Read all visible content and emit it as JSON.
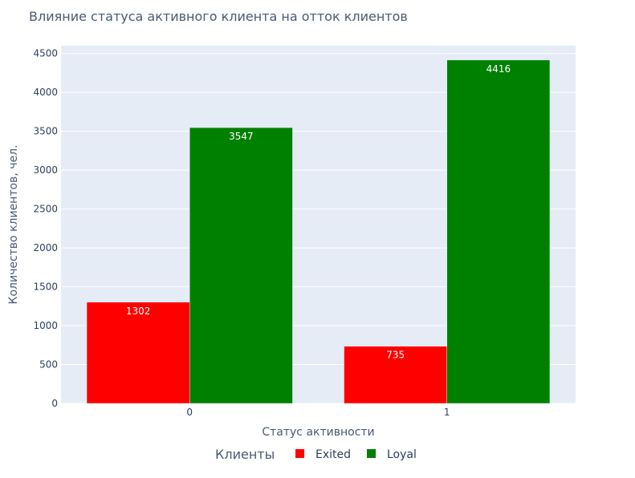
{
  "chart_data": {
    "type": "bar",
    "title": "Влияние статуса активного клиента на отток клиентов",
    "xlabel": "Статус активности",
    "ylabel": "Количество клиентов, чел.",
    "categories": [
      "0",
      "1"
    ],
    "series": [
      {
        "name": "Exited",
        "values": [
          1302,
          735
        ],
        "color": "#ff0000"
      },
      {
        "name": "Loyal",
        "values": [
          3547,
          4416
        ],
        "color": "#008000"
      }
    ],
    "ylim": [
      0,
      4600
    ],
    "yticks": [
      0,
      500,
      1000,
      1500,
      2000,
      2500,
      3000,
      3500,
      4000,
      4500
    ],
    "grid": true,
    "legend": {
      "title": "Клиенты",
      "placement": "bottom-center",
      "orientation": "horizontal"
    },
    "colors": {
      "plot_bg": "#e5ecf6",
      "grid": "#ffffff",
      "text": "#2a3f5f",
      "title": "#4a5a74",
      "bar_label": "#ffffff"
    }
  }
}
